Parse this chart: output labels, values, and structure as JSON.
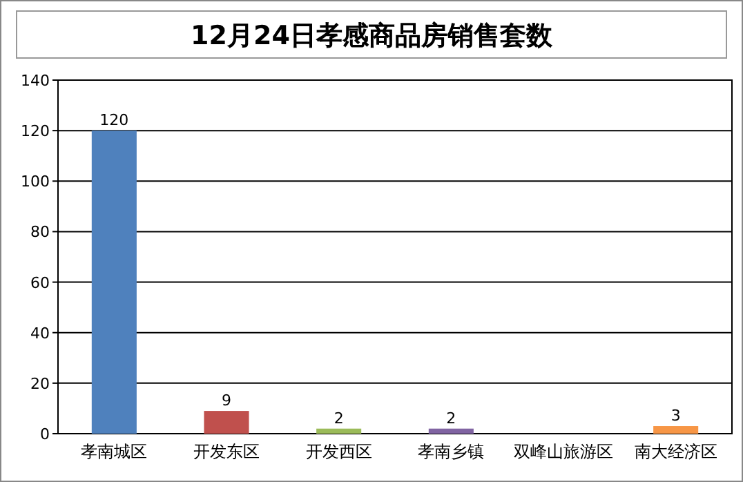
{
  "chart_data": {
    "type": "bar",
    "title": "12月24日孝感商品房销售套数",
    "categories": [
      "孝南城区",
      "开发东区",
      "开发西区",
      "孝南乡镇",
      "双峰山旅游区",
      "南大经济区"
    ],
    "values": [
      120,
      9,
      2,
      2,
      0,
      3
    ],
    "colors": [
      "#4f81bd",
      "#c0504d",
      "#9bbb59",
      "#8064a2",
      "#4bacc6",
      "#f79646"
    ],
    "value_labels": [
      "120",
      "9",
      "2",
      "2",
      null,
      "3"
    ],
    "ylim": [
      0,
      140
    ],
    "yticks": [
      0,
      20,
      40,
      60,
      80,
      100,
      120,
      140
    ],
    "grid": "y"
  }
}
